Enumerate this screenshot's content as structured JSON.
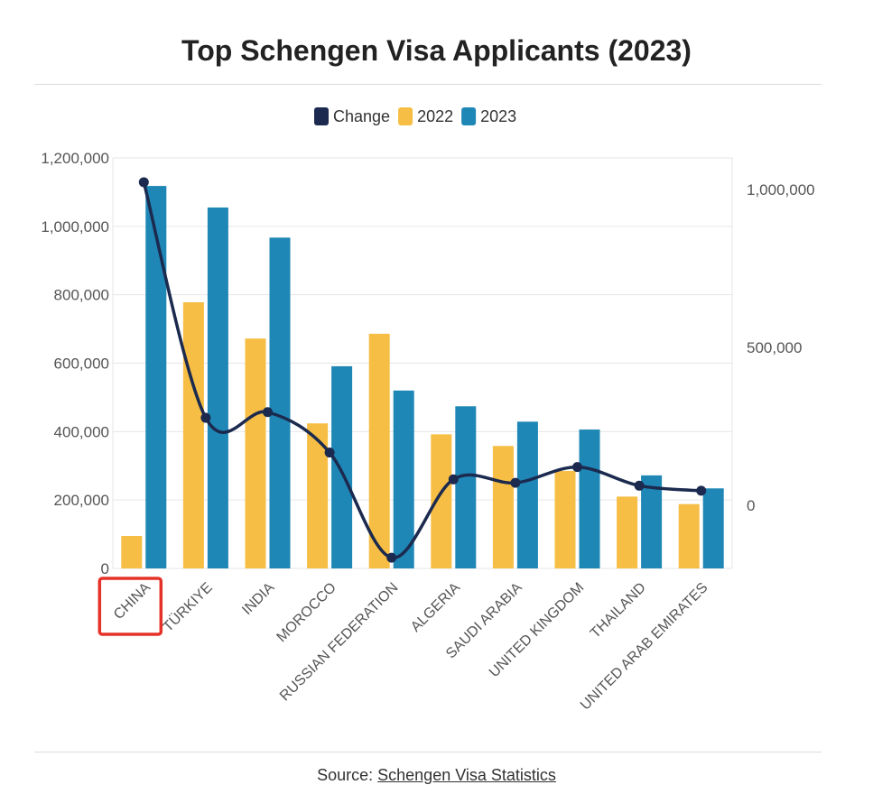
{
  "page": {
    "title": "Top Schengen Visa Applicants (2023)",
    "source_prefix": "Source:",
    "source_link": "Schengen Visa Statistics"
  },
  "colors": {
    "change": "#1b2a4e",
    "y2022": "#f6be45",
    "y2023": "#1f87b6",
    "highlight": "#e53228",
    "grid": "#e6e6e6"
  },
  "highlight": {
    "category_index": 0
  },
  "chart_data": {
    "type": "bar",
    "title": "Top Schengen Visa Applicants (2023)",
    "categories": [
      "CHINA",
      "TÜRKIYE",
      "INDIA",
      "MOROCCO",
      "RUSSIAN FEDERATION",
      "ALGERIA",
      "SAUDI ARABIA",
      "UNITED KINGDOM",
      "THAILAND",
      "UNITED ARAB EMIRATES"
    ],
    "series": [
      {
        "name": "2022",
        "type": "bar",
        "axis": "left",
        "values": [
          95000,
          778000,
          672000,
          424000,
          686000,
          392000,
          358000,
          285000,
          210000,
          188000
        ]
      },
      {
        "name": "2023",
        "type": "bar",
        "axis": "left",
        "values": [
          1118000,
          1055000,
          967000,
          591000,
          520000,
          474000,
          429000,
          406000,
          272000,
          234000
        ]
      },
      {
        "name": "Change",
        "type": "line",
        "axis": "right",
        "values": [
          1023000,
          277000,
          295000,
          167000,
          -166000,
          82000,
          71000,
          121000,
          62000,
          46000
        ]
      }
    ],
    "legend": [
      "Change",
      "2022",
      "2023"
    ],
    "legend_position": "top",
    "y_left": {
      "range": [
        0,
        1200000
      ],
      "ticks": [
        0,
        200000,
        400000,
        600000,
        800000,
        1000000,
        1200000
      ],
      "tick_labels": [
        "0",
        "200,000",
        "400,000",
        "600,000",
        "800,000",
        "1,000,000",
        "1,200,000"
      ]
    },
    "y_right": {
      "range": [
        -200000,
        1100000
      ],
      "ticks": [
        0,
        500000,
        1000000
      ],
      "tick_labels": [
        "0",
        "500,000",
        "1,000,000"
      ]
    },
    "grid": true,
    "xlabel": "",
    "ylabel": ""
  }
}
